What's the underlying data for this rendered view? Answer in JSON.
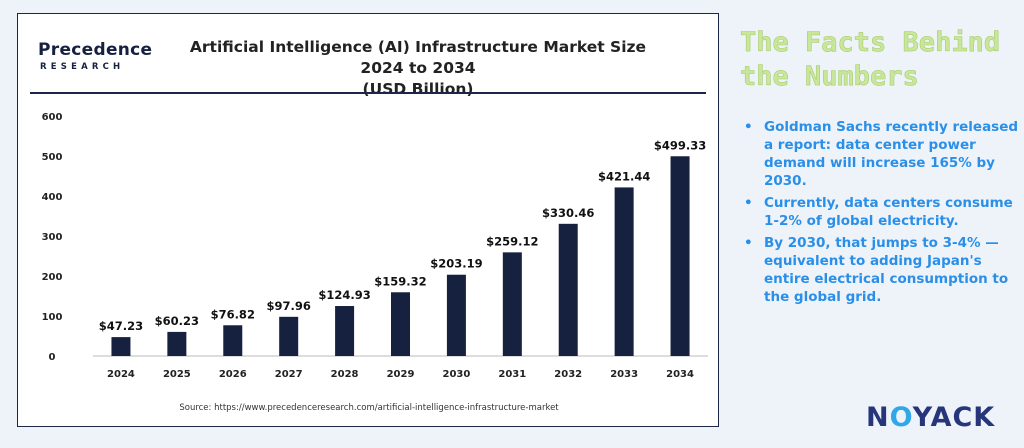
{
  "logo": {
    "main": "Precedence",
    "sub": "RESEARCH"
  },
  "chart_data": {
    "type": "bar",
    "title": "Artificial Intelligence (AI) Infrastructure Market Size 2024 to 2034",
    "subtitle": "(USD Billion)",
    "categories": [
      "2024",
      "2025",
      "2026",
      "2027",
      "2028",
      "2029",
      "2030",
      "2031",
      "2032",
      "2033",
      "2034"
    ],
    "values": [
      47.23,
      60.23,
      76.82,
      97.96,
      124.93,
      159.32,
      203.19,
      259.12,
      330.46,
      421.44,
      499.33
    ],
    "data_labels": [
      "$47.23",
      "$60.23",
      "$76.82",
      "$97.96",
      "$124.93",
      "$159.32",
      "$203.19",
      "$259.12",
      "$330.46",
      "$421.44",
      "$499.33"
    ],
    "yticks": [
      0,
      100,
      200,
      300,
      400,
      500,
      600
    ],
    "ylim": [
      0,
      600
    ],
    "xlabel": "",
    "ylabel": "",
    "grid": false,
    "bar_color": "#16213f",
    "source": "Source: https://www.precedenceresearch.com/artificial-intelligence-infrastructure-market"
  },
  "facts": {
    "title": "The Facts Behind the Numbers",
    "items": [
      "Goldman Sachs recently released a report: data center power demand will increase 165% by 2030.",
      "Currently, data centers consume 1-2% of global electricity.",
      "By 2030, that jumps to 3-4% —equivalent to adding Japan's entire electrical consumption to the global grid."
    ],
    "bullet": "•",
    "color": "#2a8fe8",
    "title_color": "#c8e79b"
  },
  "brand": {
    "prefix": "N",
    "o_letter": "O",
    "suffix": "YACK"
  }
}
